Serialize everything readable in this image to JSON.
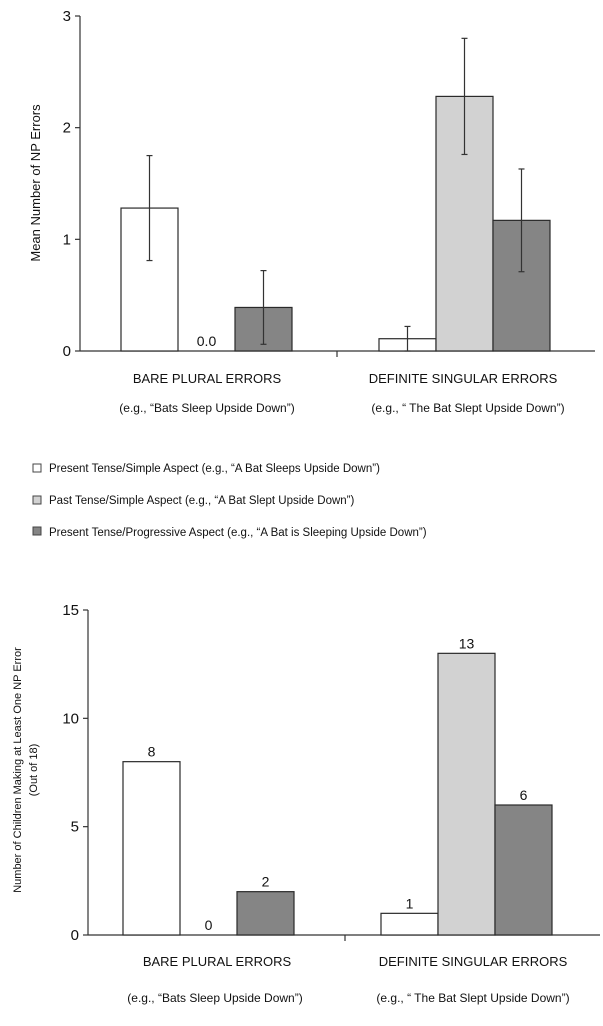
{
  "colors": {
    "present_simple": "#ffffff",
    "past_simple": "#d2d2d2",
    "present_progressive": "#858585",
    "outline": "#2a2a2a"
  },
  "legend": {
    "items": [
      "Present Tense/Simple Aspect (e.g., “A Bat Sleeps Upside Down”)",
      "Past Tense/Simple Aspect (e.g., “A Bat Slept Upside Down”)",
      "Present Tense/Progressive Aspect (e.g., “A Bat is Sleeping Upside Down”)"
    ]
  },
  "chart_data": [
    {
      "type": "bar",
      "ylabel": "Mean Number of NP Errors",
      "ylim": [
        0,
        3
      ],
      "yticks": [
        "0",
        "1",
        "2",
        "3"
      ],
      "categories": [
        "BARE PLURAL ERRORS",
        "DEFINITE SINGULAR ERRORS"
      ],
      "category_examples": [
        "(e.g., “Bats Sleep Upside Down”)",
        "(e.g., “ The Bat Slept Upside Down”)"
      ],
      "series": [
        {
          "values": [
            1.28,
            0.11
          ],
          "err_low": [
            0.81,
            0.0
          ],
          "err_high": [
            1.75,
            0.22
          ]
        },
        {
          "values": [
            0.0,
            2.28
          ],
          "err_low": [
            0.0,
            1.76
          ],
          "err_high": [
            0.0,
            2.8
          ]
        },
        {
          "values": [
            0.39,
            1.17
          ],
          "err_low": [
            0.06,
            0.71
          ],
          "err_high": [
            0.72,
            1.63
          ]
        }
      ],
      "data_labels": [
        [
          "",
          ""
        ],
        [
          "0.0",
          ""
        ],
        [
          "",
          ""
        ]
      ]
    },
    {
      "type": "bar",
      "ylabel": "Number of Children Making at Least One NP Error",
      "ylabel2": "(Out of 18)",
      "ylim": [
        0,
        15
      ],
      "yticks": [
        "0",
        "5",
        "10",
        "15"
      ],
      "categories": [
        "BARE PLURAL ERRORS",
        "DEFINITE SINGULAR ERRORS"
      ],
      "category_examples": [
        "(e.g., “Bats Sleep Upside Down”)",
        "(e.g., “ The Bat Slept Upside Down”)"
      ],
      "series": [
        {
          "values": [
            8,
            1
          ]
        },
        {
          "values": [
            0,
            13
          ]
        },
        {
          "values": [
            2,
            6
          ]
        }
      ],
      "data_labels": [
        [
          "8",
          "1"
        ],
        [
          "0",
          "13"
        ],
        [
          "2",
          "6"
        ]
      ]
    }
  ]
}
